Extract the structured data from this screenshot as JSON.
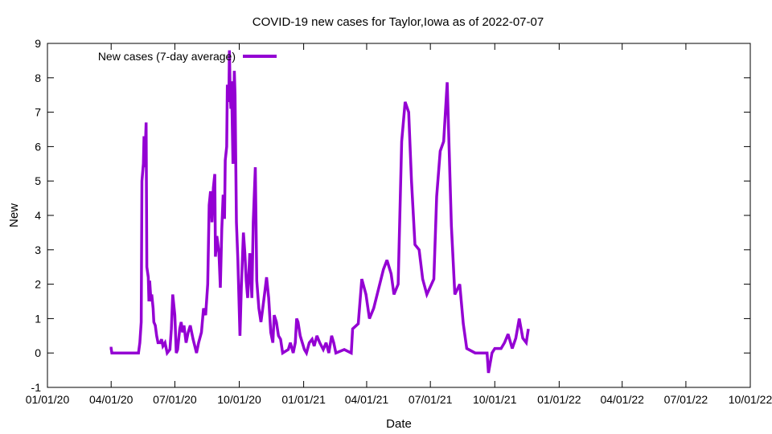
{
  "chart_data": {
    "type": "line",
    "title": "COVID-19 new cases for Taylor,Iowa as of 2022-07-07",
    "xlabel": "Date",
    "ylabel": "New",
    "xlim": [
      "2020-01-01",
      "2022-10-01"
    ],
    "ylim": [
      -1,
      9
    ],
    "x_ticks": [
      "2020-01-01",
      "2020-04-01",
      "2020-07-01",
      "2020-10-01",
      "2021-01-01",
      "2021-04-01",
      "2021-07-01",
      "2021-10-01",
      "2022-01-01",
      "2022-04-01",
      "2022-07-01",
      "2022-10-01"
    ],
    "x_tick_labels": [
      "01/01/20",
      "04/01/20",
      "07/01/20",
      "10/01/20",
      "01/01/21",
      "04/01/21",
      "07/01/21",
      "10/01/21",
      "01/01/22",
      "04/01/22",
      "07/01/22",
      "10/01/22"
    ],
    "y_ticks": [
      -1,
      0,
      1,
      2,
      3,
      4,
      5,
      6,
      7,
      8,
      9
    ],
    "grid": false,
    "legend_position": "top-left",
    "series": [
      {
        "name": "New cases (7-day average)",
        "color": "#9400d3",
        "points": [
          [
            "2020-03-30",
            0.14
          ],
          [
            "2020-04-01",
            0.14
          ],
          [
            "2020-04-02",
            0
          ],
          [
            "2020-05-10",
            0
          ],
          [
            "2020-05-12",
            0.3
          ],
          [
            "2020-05-14",
            0.9
          ],
          [
            "2020-05-15",
            5.0
          ],
          [
            "2020-05-17",
            5.5
          ],
          [
            "2020-05-18",
            6.3
          ],
          [
            "2020-05-19",
            5.4
          ],
          [
            "2020-05-21",
            6.7
          ],
          [
            "2020-05-22",
            2.5
          ],
          [
            "2020-05-24",
            2.2
          ],
          [
            "2020-05-25",
            1.5
          ],
          [
            "2020-05-26",
            2.1
          ],
          [
            "2020-05-28",
            1.5
          ],
          [
            "2020-05-29",
            1.7
          ],
          [
            "2020-05-31",
            1.3
          ],
          [
            "2020-06-01",
            0.9
          ],
          [
            "2020-06-03",
            0.8
          ],
          [
            "2020-06-05",
            0.5
          ],
          [
            "2020-06-07",
            0.3
          ],
          [
            "2020-06-10",
            0.3
          ],
          [
            "2020-06-12",
            0.4
          ],
          [
            "2020-06-14",
            0.2
          ],
          [
            "2020-06-17",
            0.3
          ],
          [
            "2020-06-20",
            0
          ],
          [
            "2020-06-24",
            0.1
          ],
          [
            "2020-06-26",
            0.7
          ],
          [
            "2020-06-28",
            1.7
          ],
          [
            "2020-07-01",
            1.1
          ],
          [
            "2020-07-03",
            0
          ],
          [
            "2020-07-05",
            0.1
          ],
          [
            "2020-07-08",
            0.7
          ],
          [
            "2020-07-10",
            0.9
          ],
          [
            "2020-07-12",
            0.6
          ],
          [
            "2020-07-14",
            0.8
          ],
          [
            "2020-07-17",
            0.3
          ],
          [
            "2020-07-20",
            0.6
          ],
          [
            "2020-07-23",
            0.8
          ],
          [
            "2020-07-27",
            0.4
          ],
          [
            "2020-08-01",
            0
          ],
          [
            "2020-08-04",
            0.3
          ],
          [
            "2020-08-08",
            0.6
          ],
          [
            "2020-08-11",
            1.3
          ],
          [
            "2020-08-14",
            1.1
          ],
          [
            "2020-08-17",
            2.0
          ],
          [
            "2020-08-19",
            4.3
          ],
          [
            "2020-08-21",
            4.7
          ],
          [
            "2020-08-23",
            3.8
          ],
          [
            "2020-08-25",
            4.8
          ],
          [
            "2020-08-27",
            5.2
          ],
          [
            "2020-08-28",
            2.8
          ],
          [
            "2020-08-30",
            3.4
          ],
          [
            "2020-09-02",
            2.9
          ],
          [
            "2020-09-04",
            1.9
          ],
          [
            "2020-09-06",
            3.6
          ],
          [
            "2020-09-08",
            4.6
          ],
          [
            "2020-09-10",
            3.9
          ],
          [
            "2020-09-11",
            5.6
          ],
          [
            "2020-09-13",
            6.0
          ],
          [
            "2020-09-14",
            7.8
          ],
          [
            "2020-09-16",
            7.3
          ],
          [
            "2020-09-17",
            8.8
          ],
          [
            "2020-09-18",
            7.6
          ],
          [
            "2020-09-19",
            7.1
          ],
          [
            "2020-09-20",
            7.9
          ],
          [
            "2020-09-22",
            5.5
          ],
          [
            "2020-09-24",
            8.2
          ],
          [
            "2020-09-25",
            7.5
          ],
          [
            "2020-09-27",
            3.8
          ],
          [
            "2020-09-29",
            2.7
          ],
          [
            "2020-10-02",
            0.5
          ],
          [
            "2020-10-04",
            1.9
          ],
          [
            "2020-10-07",
            3.5
          ],
          [
            "2020-10-09",
            2.9
          ],
          [
            "2020-10-11",
            2.1
          ],
          [
            "2020-10-13",
            1.6
          ],
          [
            "2020-10-16",
            2.9
          ],
          [
            "2020-10-19",
            1.6
          ],
          [
            "2020-10-21",
            3.8
          ],
          [
            "2020-10-24",
            5.4
          ],
          [
            "2020-10-26",
            2.1
          ],
          [
            "2020-10-29",
            1.3
          ],
          [
            "2020-11-01",
            0.9
          ],
          [
            "2020-11-03",
            1.2
          ],
          [
            "2020-11-06",
            1.7
          ],
          [
            "2020-11-09",
            2.2
          ],
          [
            "2020-11-12",
            1.6
          ],
          [
            "2020-11-15",
            0.6
          ],
          [
            "2020-11-18",
            0.3
          ],
          [
            "2020-11-20",
            1.1
          ],
          [
            "2020-11-23",
            0.9
          ],
          [
            "2020-11-26",
            0.5
          ],
          [
            "2020-11-29",
            0.4
          ],
          [
            "2020-12-02",
            0
          ],
          [
            "2020-12-10",
            0.1
          ],
          [
            "2020-12-13",
            0.3
          ],
          [
            "2020-12-17",
            0
          ],
          [
            "2020-12-20",
            0.3
          ],
          [
            "2020-12-22",
            1.0
          ],
          [
            "2020-12-24",
            0.9
          ],
          [
            "2020-12-27",
            0.5
          ],
          [
            "2021-01-02",
            0.1
          ],
          [
            "2021-01-05",
            0
          ],
          [
            "2021-01-09",
            0.3
          ],
          [
            "2021-01-13",
            0.4
          ],
          [
            "2021-01-16",
            0.2
          ],
          [
            "2021-01-20",
            0.5
          ],
          [
            "2021-01-24",
            0.3
          ],
          [
            "2021-01-29",
            0.1
          ],
          [
            "2021-02-02",
            0.3
          ],
          [
            "2021-02-06",
            0
          ],
          [
            "2021-02-10",
            0.5
          ],
          [
            "2021-02-13",
            0.3
          ],
          [
            "2021-02-16",
            0
          ],
          [
            "2021-02-28",
            0.1
          ],
          [
            "2021-03-10",
            0
          ],
          [
            "2021-03-12",
            0.7
          ],
          [
            "2021-03-20",
            0.85
          ],
          [
            "2021-03-25",
            2.15
          ],
          [
            "2021-03-31",
            1.7
          ],
          [
            "2021-04-05",
            1.0
          ],
          [
            "2021-04-11",
            1.3
          ],
          [
            "2021-04-25",
            2.43
          ],
          [
            "2021-04-30",
            2.7
          ],
          [
            "2021-05-06",
            2.3
          ],
          [
            "2021-05-10",
            1.7
          ],
          [
            "2021-05-16",
            2.0
          ],
          [
            "2021-05-21",
            6.15
          ],
          [
            "2021-05-26",
            7.3
          ],
          [
            "2021-05-31",
            7.0
          ],
          [
            "2021-06-04",
            5.0
          ],
          [
            "2021-06-09",
            3.15
          ],
          [
            "2021-06-15",
            3.0
          ],
          [
            "2021-06-20",
            2.15
          ],
          [
            "2021-06-26",
            1.7
          ],
          [
            "2021-07-06",
            2.15
          ],
          [
            "2021-07-10",
            4.55
          ],
          [
            "2021-07-15",
            5.87
          ],
          [
            "2021-07-20",
            6.15
          ],
          [
            "2021-07-25",
            7.87
          ],
          [
            "2021-07-31",
            3.7
          ],
          [
            "2021-08-05",
            1.7
          ],
          [
            "2021-08-12",
            2.0
          ],
          [
            "2021-08-17",
            0.85
          ],
          [
            "2021-08-22",
            0.13
          ],
          [
            "2021-09-03",
            0
          ],
          [
            "2021-09-20",
            0
          ],
          [
            "2021-09-22",
            -0.58
          ],
          [
            "2021-09-27",
            0.0
          ],
          [
            "2021-10-01",
            0.13
          ],
          [
            "2021-10-10",
            0.13
          ],
          [
            "2021-10-15",
            0.3
          ],
          [
            "2021-10-20",
            0.55
          ],
          [
            "2021-10-26",
            0.13
          ],
          [
            "2021-10-31",
            0.43
          ],
          [
            "2021-11-05",
            1.0
          ],
          [
            "2021-11-10",
            0.43
          ],
          [
            "2021-11-15",
            0.3
          ],
          [
            "2021-11-18",
            0.7
          ]
        ]
      }
    ]
  }
}
